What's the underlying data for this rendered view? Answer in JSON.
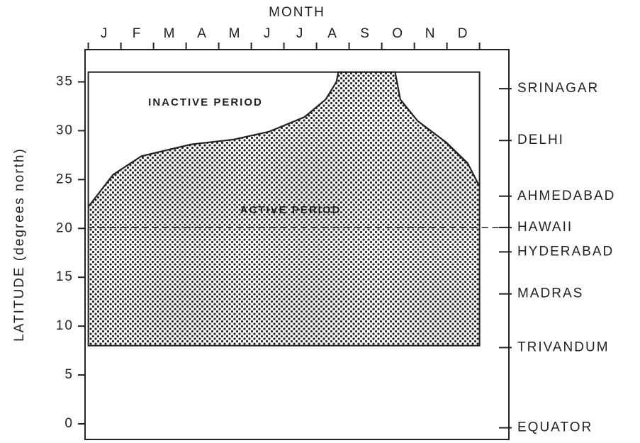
{
  "chart_data": {
    "type": "area",
    "title": "MONTH",
    "y_label": "LATITUDE (degrees north)",
    "annotations": [
      "INACTIVE PERIOD",
      "ACTIVE PERIOD"
    ],
    "x": [
      0.02,
      0.76,
      1.63,
      3.15,
      4.46,
      5.54,
      6.63,
      7.28,
      7.61,
      7.67,
      9.41,
      9.57,
      10.1,
      10.98,
      11.63,
      12
    ],
    "values": [
      22.3,
      25.5,
      27.4,
      28.6,
      29.1,
      29.9,
      31.4,
      33.2,
      35.0,
      36,
      36,
      33.2,
      31.0,
      28.8,
      26.7,
      24.3
    ],
    "period_box": {
      "x": [
        0,
        12
      ],
      "y": [
        8,
        36
      ]
    },
    "color": "#222222",
    "xlim": [
      -0.1,
      12.9
    ],
    "xticks": [
      {
        "value": 0.5,
        "label": "J"
      },
      {
        "value": 1.5,
        "label": "F"
      },
      {
        "value": 2.5,
        "label": "M"
      },
      {
        "value": 3.5,
        "label": "A"
      },
      {
        "value": 4.5,
        "label": "M"
      },
      {
        "value": 5.5,
        "label": "J"
      },
      {
        "value": 6.5,
        "label": "J"
      },
      {
        "value": 7.5,
        "label": "A"
      },
      {
        "value": 8.5,
        "label": "S"
      },
      {
        "value": 9.5,
        "label": "O"
      },
      {
        "value": 10.5,
        "label": "N"
      },
      {
        "value": 11.5,
        "label": "D"
      }
    ],
    "xminor": [
      0,
      1,
      2,
      3,
      4,
      5,
      6,
      7,
      8,
      9,
      10,
      11,
      12
    ],
    "ylim": [
      -1.6,
      38.3
    ],
    "yticks": [
      0,
      5,
      10,
      15,
      20,
      25,
      30,
      35
    ],
    "y2lim": [
      -1.6,
      38.3
    ],
    "y2ticks": [
      {
        "value": 34.3,
        "label": "SRINAGAR"
      },
      {
        "value": 29.0,
        "label": "DELHI"
      },
      {
        "value": 23.3,
        "label": "AHMEDABAD"
      },
      {
        "value": 20.1,
        "label": "HAWAII"
      },
      {
        "value": 17.6,
        "label": "HYDERABAD"
      },
      {
        "value": 13.3,
        "label": "MADRAS"
      },
      {
        "value": 7.8,
        "label": "TRIVANDUM"
      },
      {
        "value": -0.4,
        "label": "EQUATOR"
      }
    ]
  }
}
